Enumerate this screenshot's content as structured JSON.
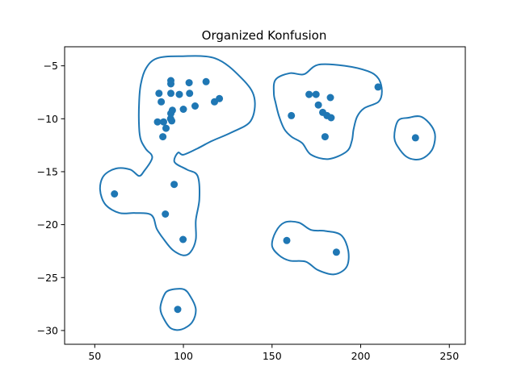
{
  "chart_data": {
    "type": "scatter",
    "title": "Organized Konfusion",
    "xlabel": "",
    "ylabel": "",
    "xlim": [
      33,
      259
    ],
    "ylim": [
      -31.3,
      -3.2
    ],
    "xticks": [
      50,
      100,
      150,
      200,
      250
    ],
    "yticks": [
      -5,
      -10,
      -15,
      -20,
      -25,
      -30
    ],
    "xtick_labels": [
      "50",
      "100",
      "150",
      "200",
      "250"
    ],
    "ytick_labels": [
      "−5",
      "−10",
      "−15",
      "−20",
      "−25",
      "−30"
    ],
    "grid": false,
    "color": "#1f77b4",
    "points": [
      {
        "x": 92.9,
        "y": -6.4
      },
      {
        "x": 92.9,
        "y": -6.7
      },
      {
        "x": 103.2,
        "y": -6.6
      },
      {
        "x": 112.8,
        "y": -6.5
      },
      {
        "x": 86.2,
        "y": -7.6
      },
      {
        "x": 92.9,
        "y": -7.6
      },
      {
        "x": 97.7,
        "y": -7.7
      },
      {
        "x": 103.5,
        "y": -7.6
      },
      {
        "x": 87.5,
        "y": -8.4
      },
      {
        "x": 106.6,
        "y": -8.8
      },
      {
        "x": 100.0,
        "y": -9.1
      },
      {
        "x": 93.8,
        "y": -9.2
      },
      {
        "x": 117.5,
        "y": -8.4
      },
      {
        "x": 120.3,
        "y": -8.1
      },
      {
        "x": 92.9,
        "y": -9.5
      },
      {
        "x": 85.4,
        "y": -10.3
      },
      {
        "x": 88.8,
        "y": -10.3
      },
      {
        "x": 92.8,
        "y": -10.0
      },
      {
        "x": 93.4,
        "y": -10.2
      },
      {
        "x": 90.2,
        "y": -10.9
      },
      {
        "x": 88.4,
        "y": -11.7
      },
      {
        "x": 61.1,
        "y": -17.1
      },
      {
        "x": 94.8,
        "y": -16.2
      },
      {
        "x": 89.8,
        "y": -19.0
      },
      {
        "x": 99.8,
        "y": -21.4
      },
      {
        "x": 96.8,
        "y": -28.0
      },
      {
        "x": 170.9,
        "y": -7.7
      },
      {
        "x": 174.8,
        "y": -7.7
      },
      {
        "x": 182.9,
        "y": -8.0
      },
      {
        "x": 176.1,
        "y": -8.7
      },
      {
        "x": 160.9,
        "y": -9.7
      },
      {
        "x": 178.6,
        "y": -9.4
      },
      {
        "x": 181.0,
        "y": -9.7
      },
      {
        "x": 183.3,
        "y": -9.9
      },
      {
        "x": 179.9,
        "y": -11.7
      },
      {
        "x": 209.8,
        "y": -7.0
      },
      {
        "x": 230.9,
        "y": -11.8
      },
      {
        "x": 158.3,
        "y": -21.5
      },
      {
        "x": 186.3,
        "y": -22.6
      }
    ],
    "contours": [
      [
        [
          97,
          -4.1
        ],
        [
          118,
          -4.3
        ],
        [
          133,
          -6.2
        ],
        [
          140,
          -8.0
        ],
        [
          138,
          -10.2
        ],
        [
          127,
          -11.3
        ],
        [
          116,
          -12.1
        ],
        [
          108,
          -12.8
        ],
        [
          100,
          -13.4
        ],
        [
          97,
          -13.2
        ],
        [
          95,
          -14.1
        ],
        [
          102,
          -14.8
        ],
        [
          108,
          -15.4
        ],
        [
          109,
          -17.6
        ],
        [
          107,
          -19.6
        ],
        [
          107,
          -21.4
        ],
        [
          104,
          -22.6
        ],
        [
          100,
          -22.9
        ],
        [
          94,
          -22.4
        ],
        [
          89,
          -21.4
        ],
        [
          85,
          -20.4
        ],
        [
          82,
          -19.1
        ],
        [
          73,
          -18.9
        ],
        [
          64,
          -18.9
        ],
        [
          56,
          -18.1
        ],
        [
          53,
          -16.7
        ],
        [
          55,
          -15.4
        ],
        [
          62,
          -14.7
        ],
        [
          70,
          -14.8
        ],
        [
          75,
          -15.4
        ],
        [
          78,
          -14.9
        ],
        [
          82,
          -13.9
        ],
        [
          82,
          -13.4
        ],
        [
          79,
          -12.9
        ],
        [
          76,
          -12.0
        ],
        [
          75,
          -10.8
        ],
        [
          75,
          -8.5
        ],
        [
          76,
          -6.7
        ],
        [
          79,
          -5.2
        ],
        [
          85,
          -4.3
        ],
        [
          97,
          -4.1
        ]
      ],
      [
        [
          152,
          -6.3
        ],
        [
          160,
          -5.7
        ],
        [
          168,
          -5.8
        ],
        [
          176,
          -4.9
        ],
        [
          191,
          -5.0
        ],
        [
          204,
          -5.5
        ],
        [
          210,
          -6.2
        ],
        [
          212,
          -7.4
        ],
        [
          210,
          -8.4
        ],
        [
          202,
          -9.0
        ],
        [
          198,
          -9.8
        ],
        [
          196,
          -11.0
        ],
        [
          195,
          -12.1
        ],
        [
          192,
          -13.1
        ],
        [
          182,
          -13.8
        ],
        [
          172,
          -13.4
        ],
        [
          167,
          -12.3
        ],
        [
          161,
          -11.7
        ],
        [
          157,
          -11.0
        ],
        [
          154,
          -9.8
        ],
        [
          152,
          -8.5
        ],
        [
          151,
          -7.6
        ],
        [
          152,
          -6.3
        ]
      ],
      [
        [
          221,
          -10.2
        ],
        [
          227,
          -9.9
        ],
        [
          234,
          -9.8
        ],
        [
          240,
          -10.7
        ],
        [
          242,
          -11.7
        ],
        [
          240,
          -13.0
        ],
        [
          234,
          -13.8
        ],
        [
          227,
          -13.7
        ],
        [
          222,
          -12.9
        ],
        [
          219,
          -11.8
        ],
        [
          221,
          -10.2
        ]
      ],
      [
        [
          157,
          -19.8
        ],
        [
          165,
          -19.8
        ],
        [
          172,
          -20.5
        ],
        [
          180,
          -20.6
        ],
        [
          189,
          -21.0
        ],
        [
          193,
          -22.5
        ],
        [
          192,
          -24.0
        ],
        [
          185,
          -24.7
        ],
        [
          176,
          -24.3
        ],
        [
          169,
          -23.5
        ],
        [
          160,
          -23.4
        ],
        [
          154,
          -22.9
        ],
        [
          150,
          -22.0
        ],
        [
          152,
          -20.7
        ],
        [
          157,
          -19.8
        ]
      ],
      [
        [
          92,
          -26.2
        ],
        [
          100,
          -26.1
        ],
        [
          104,
          -26.8
        ],
        [
          107,
          -28.0
        ],
        [
          105,
          -29.2
        ],
        [
          99,
          -29.9
        ],
        [
          93,
          -29.8
        ],
        [
          89,
          -28.9
        ],
        [
          87,
          -27.9
        ],
        [
          89,
          -26.7
        ],
        [
          92,
          -26.2
        ]
      ]
    ]
  }
}
